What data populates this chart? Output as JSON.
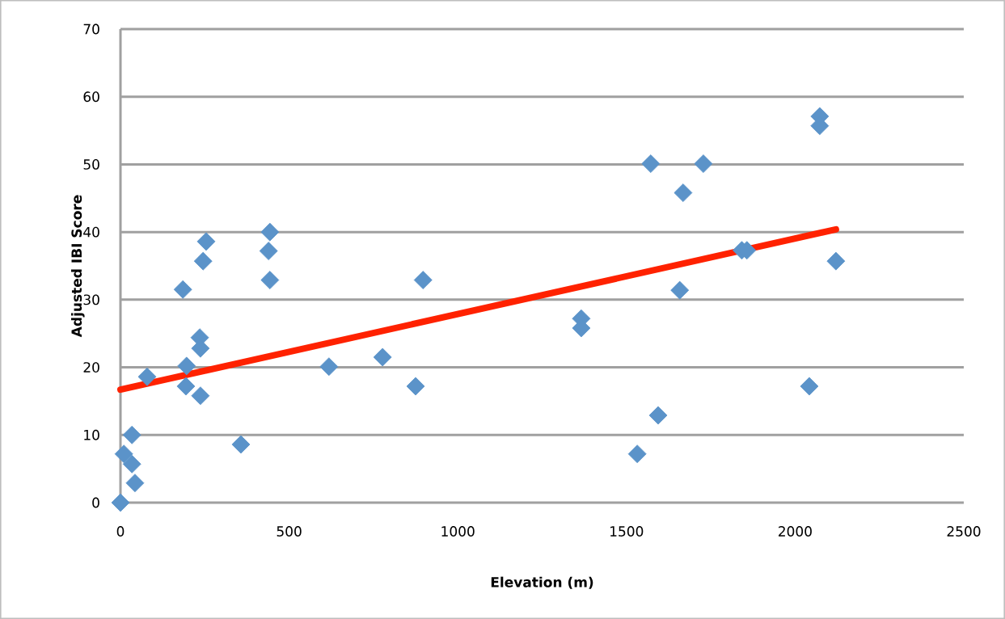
{
  "chart_data": {
    "type": "scatter",
    "xlabel": "Elevation (m)",
    "ylabel": "Adjusted IBI Score",
    "xlim": [
      0,
      2500
    ],
    "ylim": [
      0,
      70
    ],
    "xticks": [
      0,
      500,
      1000,
      1500,
      2000,
      2500
    ],
    "yticks": [
      0,
      10,
      20,
      30,
      40,
      50,
      60,
      70
    ],
    "grid": "y",
    "series": [
      {
        "type": "scatter",
        "marker": "diamond",
        "color": "#5b93c9",
        "x": [
          0,
          10,
          34,
          43,
          34,
          79,
          185,
          245,
          254,
          235,
          237,
          196,
          194,
          237,
          357,
          443,
          439,
          443,
          618,
          777,
          897,
          875,
          1366,
          1366,
          1572,
          1728,
          1668,
          2073,
          2073,
          1658,
          1842,
          1857,
          2121,
          2042,
          1594,
          1532
        ],
        "values": [
          0,
          7.2,
          5.7,
          2.9,
          10.0,
          18.6,
          31.5,
          35.7,
          38.6,
          24.4,
          22.8,
          20.2,
          17.2,
          15.8,
          8.6,
          40.0,
          37.2,
          32.9,
          20.1,
          21.5,
          32.9,
          17.2,
          27.2,
          25.8,
          50.1,
          50.1,
          45.8,
          57.1,
          55.7,
          31.4,
          37.3,
          37.3,
          35.7,
          17.2,
          12.9,
          7.2
        ]
      },
      {
        "type": "line",
        "marker": "none",
        "color": "#ff2200",
        "x": [
          0,
          2121
        ],
        "values": [
          16.7,
          40.4
        ]
      }
    ]
  }
}
